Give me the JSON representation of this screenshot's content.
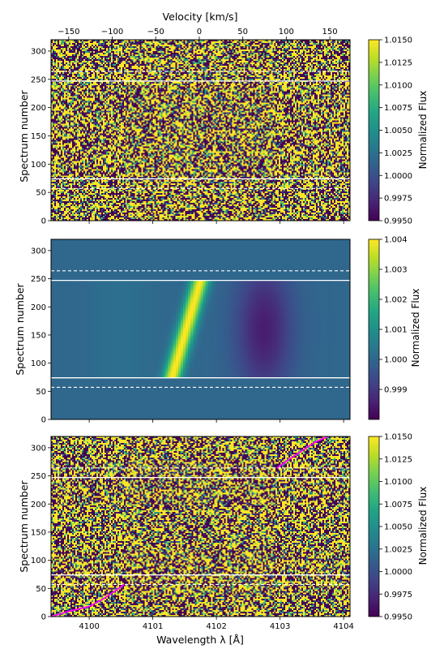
{
  "chart_data": [
    {
      "type": "heatmap",
      "panel": "top",
      "top_axis_label": "Velocity [km/s]",
      "top_axis_ticks": [
        -150,
        -100,
        -50,
        0,
        50,
        100,
        150
      ],
      "top_axis_tick_labels": [
        "−150",
        "−100",
        "−50",
        "0",
        "50",
        "100",
        "150"
      ],
      "ylabel": "Spectrum number",
      "yticks": [
        0,
        50,
        100,
        150,
        200,
        250,
        300
      ],
      "ylim": [
        0,
        320
      ],
      "xlim": [
        4099.4,
        4104.1
      ],
      "colormap": "viridis",
      "data_description_value": "noise",
      "colorbar": {
        "label": "Normalized Flux",
        "range": [
          0.995,
          1.015
        ],
        "ticks": [
          0.995,
          0.9975,
          1.0,
          1.0025,
          1.005,
          1.0075,
          1.01,
          1.0125,
          1.015
        ],
        "tick_labels": [
          "0.9950",
          "0.9975",
          "1.0000",
          "1.0025",
          "1.0050",
          "1.0075",
          "1.0100",
          "1.0125",
          "1.0150"
        ]
      },
      "solid_lines_y": [
        74,
        247
      ],
      "dashed_lines_y": [
        57,
        264
      ]
    },
    {
      "type": "heatmap",
      "panel": "middle",
      "ylabel": "Spectrum number",
      "yticks": [
        0,
        50,
        100,
        150,
        200,
        250,
        300
      ],
      "ylim": [
        0,
        320
      ],
      "xlim": [
        4099.4,
        4104.1
      ],
      "colormap": "viridis",
      "background_value": 1.0,
      "emission_feature": {
        "y_range": [
          74,
          247
        ],
        "wavelength_start": 4101.3,
        "wavelength_end": 4101.75,
        "peak": 1.004
      },
      "absorption_feature": {
        "y_range": [
          74,
          247
        ],
        "wavelength_center": 4102.75,
        "min": 0.9985
      },
      "colorbar": {
        "label": "Normalized Flux",
        "range": [
          0.998,
          1.004
        ],
        "ticks": [
          0.999,
          1.0,
          1.001,
          1.002,
          1.003,
          1.004
        ],
        "tick_labels": [
          "0.999",
          "1.000",
          "1.001",
          "1.002",
          "1.003",
          "1.004"
        ]
      },
      "solid_lines_y": [
        74,
        247
      ],
      "dashed_lines_y": [
        57,
        264
      ]
    },
    {
      "type": "heatmap",
      "panel": "bottom",
      "xlabel": "Wavelength λ [Å]",
      "xticks": [
        4100,
        4101,
        4102,
        4103,
        4104
      ],
      "xtick_labels": [
        "4100",
        "4101",
        "4102",
        "4103",
        "4104"
      ],
      "ylabel": "Spectrum number",
      "yticks": [
        0,
        50,
        100,
        150,
        200,
        250,
        300
      ],
      "ylim": [
        0,
        320
      ],
      "xlim": [
        4099.4,
        4104.1
      ],
      "colormap": "viridis",
      "colorbar": {
        "label": "Normalized Flux",
        "range": [
          0.995,
          1.015
        ],
        "ticks": [
          0.995,
          0.9975,
          1.0,
          1.0025,
          1.005,
          1.0075,
          1.01,
          1.0125,
          1.015
        ],
        "tick_labels": [
          "0.9950",
          "0.9975",
          "1.0000",
          "1.0025",
          "1.0050",
          "1.0075",
          "1.0100",
          "1.0125",
          "1.0150"
        ]
      },
      "solid_lines_y": [
        74,
        247
      ],
      "dashed_lines_y": [
        57,
        264
      ],
      "magenta_traces": [
        {
          "x": [
            4099.4,
            4099.7,
            4100.0,
            4100.2,
            4100.4,
            4100.55
          ],
          "y": [
            0,
            10,
            18,
            30,
            45,
            57
          ]
        },
        {
          "x": [
            4102.95,
            4103.15,
            4103.35,
            4103.55,
            4103.75
          ],
          "y": [
            264,
            280,
            295,
            310,
            320
          ]
        }
      ]
    }
  ]
}
